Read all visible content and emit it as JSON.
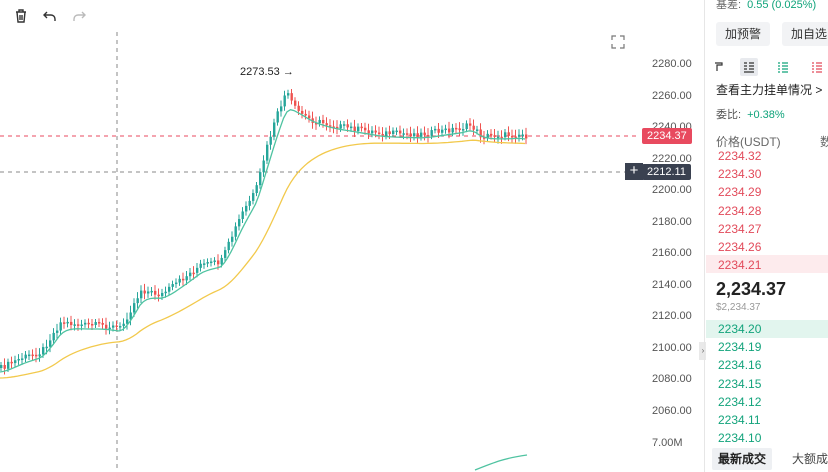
{
  "toolbar": {
    "icons": [
      "trash-icon",
      "undo-icon",
      "redo-icon"
    ]
  },
  "chart": {
    "high_label": "2273.53 →",
    "price_axis": [
      "2280.00",
      "2260.00",
      "2240.00",
      "2220.00",
      "2200.00",
      "2180.00",
      "2160.00",
      "2140.00",
      "2120.00",
      "2100.00",
      "2080.00",
      "2060.00"
    ],
    "volume_label": "7.00M",
    "last_price_tag": "2234.37",
    "crosshair_price_tag": "2212.11",
    "colors": {
      "up": "#26a69a",
      "down": "#ef5350",
      "ma_fast": "#4fc3a1",
      "ma_slow": "#f2c94c",
      "last_tag": "#e84a5f",
      "cross_tag": "#3a4150"
    }
  },
  "panel": {
    "basis_label": "基差:",
    "basis_value": "0.55 (0.025%)",
    "alert_button": "加预警",
    "watchlist_button": "加自选",
    "main_orders_link": "查看主力挂单情况 >",
    "ratio_label": "委比:",
    "ratio_value": "+0.38%",
    "price_header": "价格(USDT)",
    "qty_header": "数",
    "asks": [
      "2234.32",
      "2234.30",
      "2234.29",
      "2234.28",
      "2234.27",
      "2234.26",
      "2234.21"
    ],
    "last_price": "2,234.37",
    "last_price_usd": "$2,234.37",
    "bids": [
      "2234.20",
      "2234.19",
      "2234.16",
      "2234.15",
      "2234.12",
      "2234.11",
      "2234.10"
    ],
    "tab_latest": "最新成交",
    "tab_large": "大额成"
  }
}
